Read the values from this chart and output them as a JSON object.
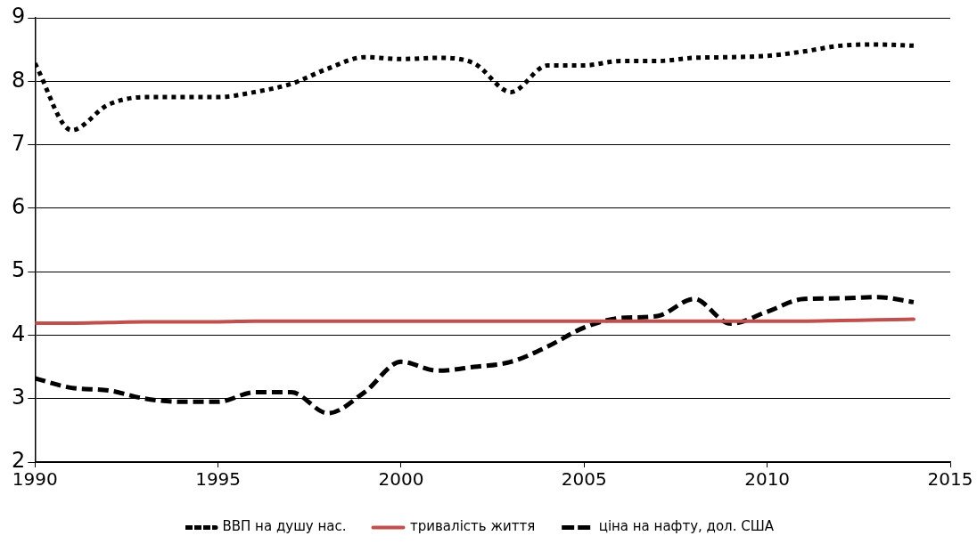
{
  "chart_data": {
    "type": "line",
    "x": [
      1990,
      1991,
      1992,
      1993,
      1994,
      1995,
      1996,
      1997,
      1998,
      1999,
      2000,
      2001,
      2002,
      2003,
      2004,
      2005,
      2006,
      2007,
      2008,
      2009,
      2010,
      2011,
      2012,
      2013,
      2014
    ],
    "series": [
      {
        "name": "ВВП на душу нас.",
        "color": "#000000",
        "line_style": "dotted",
        "values": [
          8.28,
          7.23,
          7.63,
          7.75,
          7.75,
          7.75,
          7.83,
          7.96,
          8.2,
          8.38,
          8.35,
          8.37,
          8.28,
          7.83,
          8.25,
          8.25,
          8.32,
          8.32,
          8.37,
          8.38,
          8.4,
          8.47,
          8.56,
          8.58,
          8.56
        ]
      },
      {
        "name": "тривалість життя",
        "color": "#c0504d",
        "line_style": "solid",
        "values": [
          4.19,
          4.19,
          4.2,
          4.21,
          4.21,
          4.21,
          4.22,
          4.22,
          4.22,
          4.22,
          4.22,
          4.22,
          4.22,
          4.22,
          4.22,
          4.22,
          4.22,
          4.22,
          4.22,
          4.22,
          4.22,
          4.22,
          4.23,
          4.24,
          4.25
        ]
      },
      {
        "name": "ціна на нафту, дол. США",
        "color": "#000000",
        "line_style": "dashed",
        "values": [
          3.32,
          3.17,
          3.13,
          3.0,
          2.95,
          2.95,
          3.1,
          3.1,
          2.77,
          3.1,
          3.58,
          3.44,
          3.5,
          3.58,
          3.82,
          4.12,
          4.27,
          4.3,
          4.57,
          4.18,
          4.37,
          4.57,
          4.58,
          4.6,
          4.52
        ]
      }
    ],
    "xlim": [
      1990,
      2015
    ],
    "xticks": [
      1990,
      1995,
      2000,
      2005,
      2010,
      2015
    ],
    "ylim": [
      2,
      9
    ],
    "yticks": [
      2,
      3,
      4,
      5,
      6,
      7,
      8,
      9
    ],
    "grid": "y",
    "legend": "bottom",
    "marker": "none"
  }
}
